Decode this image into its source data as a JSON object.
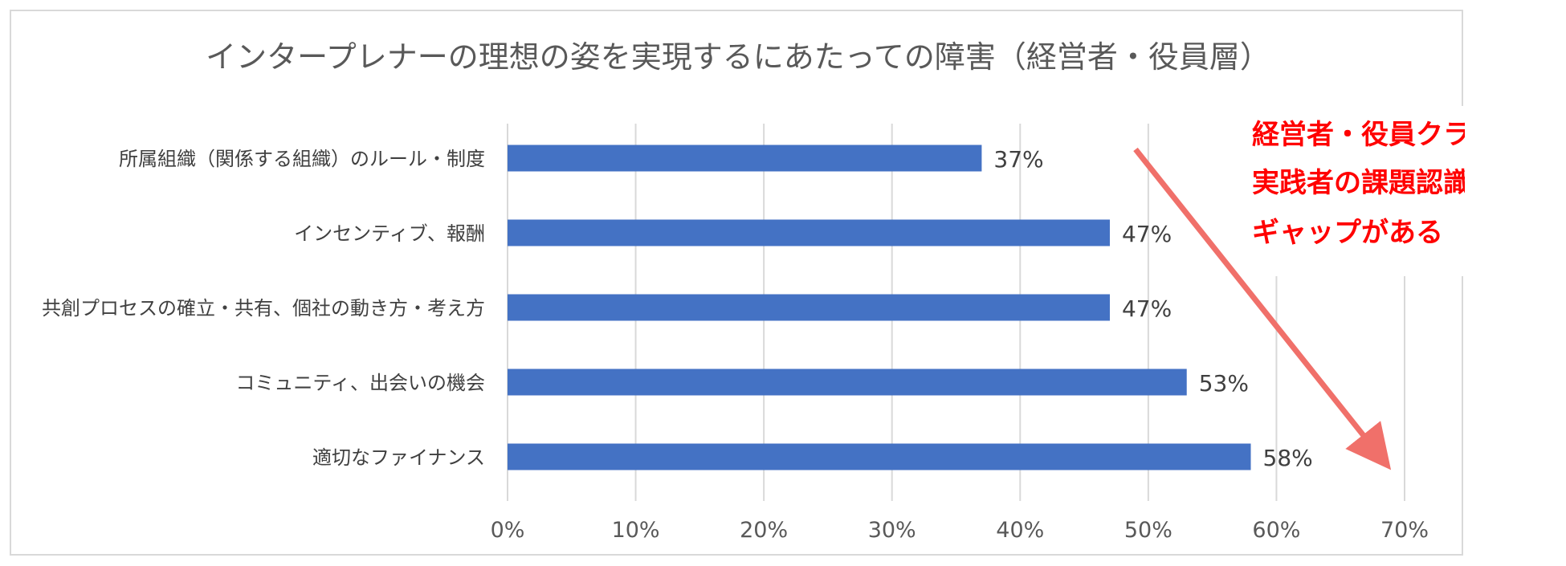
{
  "chart_data": {
    "type": "bar",
    "orientation": "horizontal",
    "title": "インタープレナーの理想の姿を実現するにあたっての障害（経営者・役員層）",
    "categories": [
      "所属組織（関係する組織）のルール・制度",
      "インセンティブ、報酬",
      "共創プロセスの確立・共有、個社の動き方・考え方",
      "コミュニティ、出会いの機会",
      "適切なファイナンス"
    ],
    "values": [
      37,
      47,
      47,
      53,
      58
    ],
    "data_labels": [
      "37%",
      "47%",
      "47%",
      "53%",
      "58%"
    ],
    "xlim": [
      0,
      70
    ],
    "x_ticks": [
      0,
      10,
      20,
      30,
      40,
      50,
      60,
      70
    ],
    "x_tick_labels": [
      "0%",
      "10%",
      "20%",
      "30%",
      "40%",
      "50%",
      "60%",
      "70%"
    ],
    "grid": "vertical",
    "legend": "none",
    "bar_color": "#4472c4",
    "annotation": {
      "lines": [
        "経営者・役員クラスと",
        "実践者の課題認識には",
        "ギャップがある"
      ],
      "text_color": "#ff0000",
      "arrow_color": "#f0706a"
    }
  }
}
